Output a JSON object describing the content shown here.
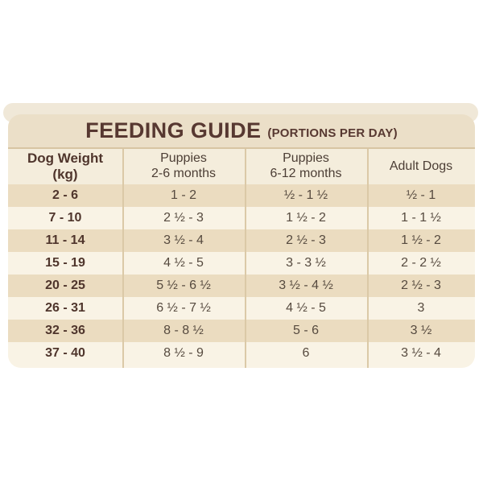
{
  "title": {
    "main": "FEEDING GUIDE",
    "suffix": "(PORTIONS PER DAY)"
  },
  "table": {
    "headers": [
      {
        "line1": "Dog Weight",
        "line2": "(kg)"
      },
      {
        "line1": "Puppies",
        "line2": "2-6 months"
      },
      {
        "line1": "Puppies",
        "line2": "6-12 months"
      },
      {
        "line1": "Adult Dogs",
        "line2": ""
      }
    ],
    "rows": [
      [
        "2 - 6",
        "1 - 2",
        "½ - 1 ½",
        "½ - 1"
      ],
      [
        "7 - 10",
        "2 ½ - 3",
        "1 ½ - 2",
        "1 - 1 ½"
      ],
      [
        "11 - 14",
        "3 ½ - 4",
        "2 ½ - 3",
        "1 ½ - 2"
      ],
      [
        "15 - 19",
        "4 ½ - 5",
        "3 - 3 ½",
        "2 - 2 ½"
      ],
      [
        "20 - 25",
        "5 ½ - 6 ½",
        "3 ½ - 4 ½",
        "2 ½ - 3"
      ],
      [
        "26 - 31",
        "6 ½ - 7 ½",
        "4 ½ - 5",
        "3"
      ],
      [
        "32 - 36",
        "8 - 8 ½",
        "5 - 6",
        "3 ½"
      ],
      [
        "37 - 40",
        "8 ½ - 9",
        "6",
        "3 ½ - 4"
      ]
    ]
  },
  "colors": {
    "title_text": "#573831",
    "title_band_bg": "#ebdfc8",
    "header_bg": "#f4eddc",
    "stripe_dark": "#ebdcc0",
    "stripe_light": "#f9f3e5",
    "divider": "#dbc9a7",
    "weight_text": "#4f352c",
    "value_text": "#564a3f"
  },
  "chart_data": {
    "type": "table",
    "title": "FEEDING GUIDE (PORTIONS PER DAY)",
    "columns": [
      "Dog Weight (kg)",
      "Puppies 2-6 months",
      "Puppies 6-12 months",
      "Adult Dogs"
    ],
    "rows": [
      [
        "2 - 6",
        "1 - 2",
        "½ - 1 ½",
        "½ - 1"
      ],
      [
        "7 - 10",
        "2 ½ - 3",
        "1 ½ - 2",
        "1 - 1 ½"
      ],
      [
        "11 - 14",
        "3 ½ - 4",
        "2 ½ - 3",
        "1 ½ - 2"
      ],
      [
        "15 - 19",
        "4 ½ - 5",
        "3 - 3 ½",
        "2 - 2 ½"
      ],
      [
        "20 - 25",
        "5 ½ - 6 ½",
        "3 ½ - 4 ½",
        "2 ½ - 3"
      ],
      [
        "26 - 31",
        "6 ½ - 7 ½",
        "4 ½ - 5",
        "3"
      ],
      [
        "32 - 36",
        "8 - 8 ½",
        "5 - 6",
        "3 ½"
      ],
      [
        "37 - 40",
        "8 ½ - 9",
        "6",
        "3 ½ - 4"
      ]
    ]
  }
}
